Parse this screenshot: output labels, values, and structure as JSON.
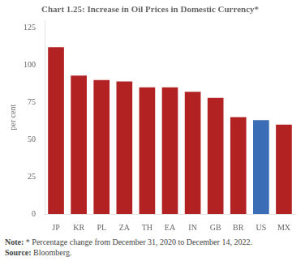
{
  "chart_data": {
    "type": "bar",
    "title": "Chart 1.25: Increase in Oil Prices in Domestic Currency*",
    "categories": [
      "JP",
      "KR",
      "PL",
      "ZA",
      "TH",
      "EA",
      "IN",
      "GB",
      "BR",
      "US",
      "MX"
    ],
    "values": [
      112,
      93,
      90,
      89,
      85,
      85,
      82,
      78,
      65,
      63,
      60
    ],
    "colors": [
      "#b22222",
      "#b22222",
      "#b22222",
      "#b22222",
      "#b22222",
      "#b22222",
      "#b22222",
      "#b22222",
      "#b22222",
      "#3a6db5",
      "#b22222"
    ],
    "ylabel": "per cent",
    "ylim": [
      0,
      130
    ],
    "yticks": [
      0,
      25,
      50,
      75,
      100,
      125
    ],
    "grid": false,
    "annotations": [
      "Note: * Percentage change from December 31, 2020 to December 14, 2022.",
      "Source: Bloomberg."
    ]
  }
}
